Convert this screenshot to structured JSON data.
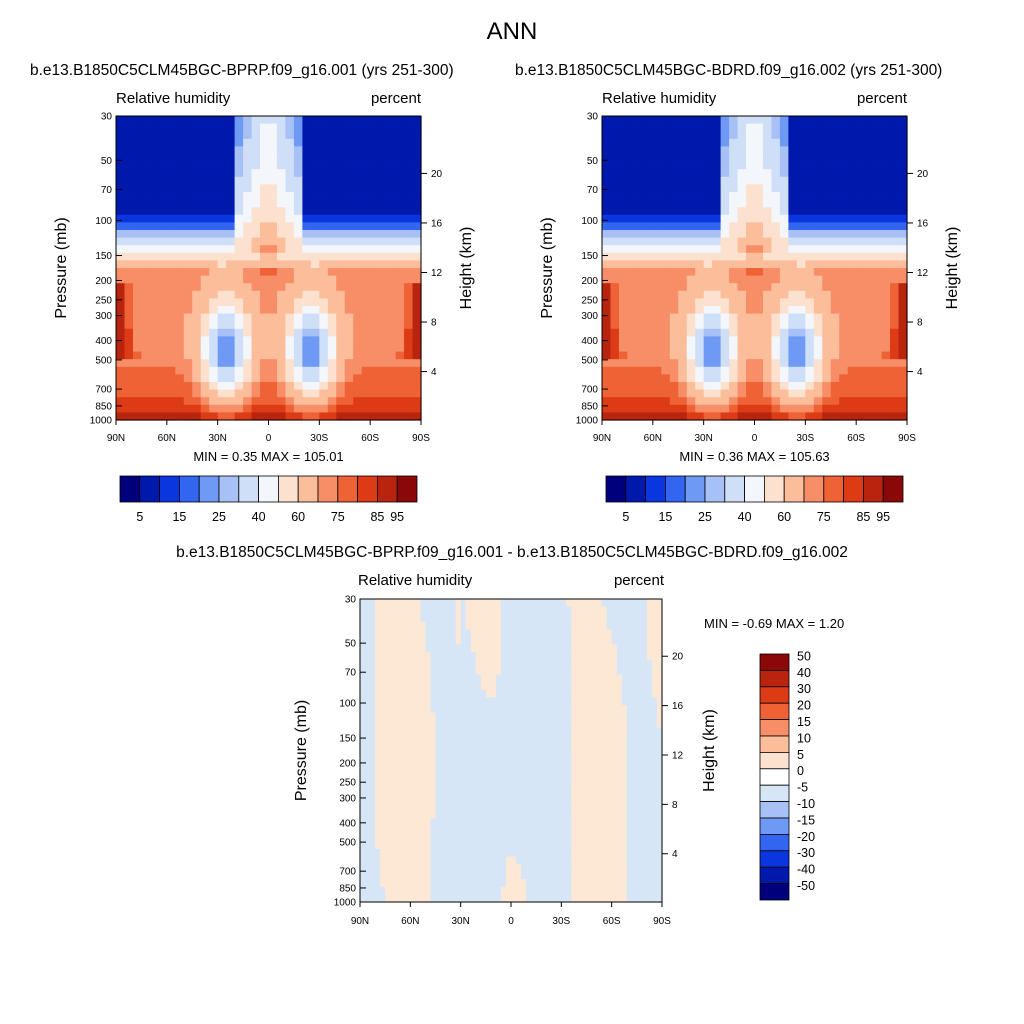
{
  "page_title": "ANN",
  "chart_data": [
    {
      "type": "heatmap",
      "title": "b.e13.B1850C5CLM45BGC-BPRP.f09_g16.001 (yrs 251-300)",
      "variable_label": "Relative humidity",
      "units_label": "percent",
      "ylabel": "Pressure (mb)",
      "ylabel_right": "Height (km)",
      "x_ticks": [
        "90N",
        "60N",
        "30N",
        "0",
        "30S",
        "60S",
        "90S"
      ],
      "y_ticks": [
        "30",
        "50",
        "70",
        "100",
        "150",
        "200",
        "250",
        "300",
        "400",
        "500",
        "700",
        "850",
        "1000"
      ],
      "y_ticks_right": [
        "20",
        "16",
        "12",
        "8",
        "4"
      ],
      "min_max_text": "MIN =   0.35  MAX = 105.01",
      "min": 0.35,
      "max": 105.01,
      "colorbar_labels": [
        "5",
        "15",
        "25",
        "40",
        "60",
        "75",
        "85",
        "95"
      ],
      "colorbar_colors": [
        "#00007d",
        "#0019ad",
        "#0a36e0",
        "#3366f0",
        "#6e99f5",
        "#a7c0f5",
        "#cfdff8",
        "#f3f6fb",
        "#fde1cf",
        "#fbbd9a",
        "#f78e67",
        "#ee6236",
        "#dd3b16",
        "#b9240f",
        "#8a0808"
      ]
    },
    {
      "type": "heatmap",
      "title": "b.e13.B1850C5CLM45BGC-BDRD.f09_g16.002 (yrs 251-300)",
      "variable_label": "Relative humidity",
      "units_label": "percent",
      "ylabel": "Pressure (mb)",
      "ylabel_right": "Height (km)",
      "x_ticks": [
        "90N",
        "60N",
        "30N",
        "0",
        "30S",
        "60S",
        "90S"
      ],
      "y_ticks": [
        "30",
        "50",
        "70",
        "100",
        "150",
        "200",
        "250",
        "300",
        "400",
        "500",
        "700",
        "850",
        "1000"
      ],
      "y_ticks_right": [
        "20",
        "16",
        "12",
        "8",
        "4"
      ],
      "min_max_text": "MIN =   0.36  MAX = 105.63",
      "min": 0.36,
      "max": 105.63,
      "colorbar_labels": [
        "5",
        "15",
        "25",
        "40",
        "60",
        "75",
        "85",
        "95"
      ],
      "colorbar_colors": [
        "#00007d",
        "#0019ad",
        "#0a36e0",
        "#3366f0",
        "#6e99f5",
        "#a7c0f5",
        "#cfdff8",
        "#f3f6fb",
        "#fde1cf",
        "#fbbd9a",
        "#f78e67",
        "#ee6236",
        "#dd3b16",
        "#b9240f",
        "#8a0808"
      ]
    },
    {
      "type": "heatmap",
      "title": "b.e13.B1850C5CLM45BGC-BPRP.f09_g16.001 - b.e13.B1850C5CLM45BGC-BDRD.f09_g16.002",
      "variable_label": "Relative humidity",
      "units_label": "percent",
      "ylabel": "Pressure (mb)",
      "ylabel_right": "Height (km)",
      "x_ticks": [
        "90N",
        "60N",
        "30N",
        "0",
        "30S",
        "60S",
        "90S"
      ],
      "y_ticks": [
        "30",
        "50",
        "70",
        "100",
        "150",
        "200",
        "250",
        "300",
        "400",
        "500",
        "700",
        "850",
        "1000"
      ],
      "y_ticks_right": [
        "20",
        "16",
        "12",
        "8",
        "4"
      ],
      "min_max_text": "MIN =  -0.69  MAX =   1.20",
      "min": -0.69,
      "max": 1.2,
      "colorbar_labels": [
        "50",
        "40",
        "30",
        "20",
        "15",
        "10",
        "5",
        "0",
        "-5",
        "-10",
        "-15",
        "-20",
        "-30",
        "-40",
        "-50"
      ],
      "colorbar_colors": [
        "#8a0808",
        "#b9240f",
        "#dd3b16",
        "#ee6236",
        "#f78e67",
        "#fbbd9a",
        "#fde1cf",
        "#ffffff",
        "#d6e6f7",
        "#a7c0f5",
        "#6e99f5",
        "#3366f0",
        "#0a36e0",
        "#0019ad",
        "#00007d"
      ],
      "contour_fill_colors": {
        "positive": "#fde8d5",
        "negative": "#d6e6f7"
      }
    }
  ]
}
